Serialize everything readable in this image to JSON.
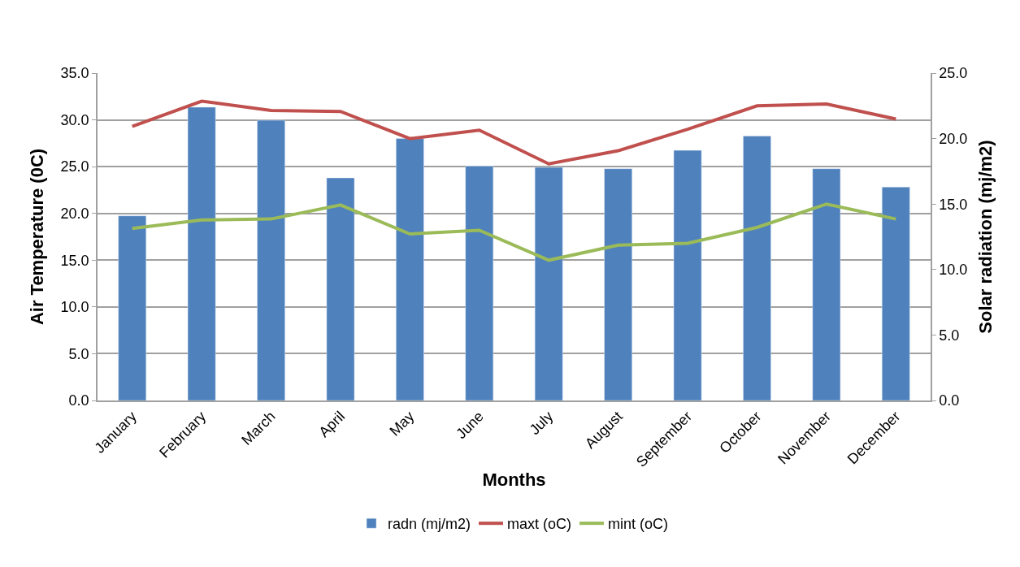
{
  "chart_data": {
    "type": "bar",
    "xlabel": "Months",
    "ylabel": "Air Temperature (0C)",
    "y2label": "Solar radiation (mj/m2)",
    "categories": [
      "January",
      "February",
      "March",
      "April",
      "May",
      "June",
      "July",
      "August",
      "September",
      "October",
      "November",
      "December"
    ],
    "series": [
      {
        "name": "radn (mj/m2)",
        "axis": "y2",
        "color": "#4f81bd",
        "values": [
          14.1,
          22.4,
          21.4,
          17.0,
          20.0,
          17.9,
          17.8,
          17.7,
          19.1,
          20.2,
          17.7,
          16.3
        ]
      },
      {
        "name": "maxt (oC)",
        "type": "line",
        "color": "#c0504d",
        "values": [
          29.3,
          32.0,
          31.0,
          30.9,
          28.0,
          28.9,
          25.3,
          26.7,
          29.0,
          31.5,
          31.7,
          30.1
        ]
      },
      {
        "name": "mint (oC)",
        "type": "line",
        "color": "#9bbb59",
        "values": [
          18.4,
          19.3,
          19.4,
          20.9,
          17.8,
          18.2,
          15.0,
          16.6,
          16.8,
          18.5,
          21.0,
          19.4
        ]
      }
    ],
    "ylim": [
      0,
      35
    ],
    "yticks": [
      {
        "value": 0,
        "label": "0.0"
      },
      {
        "value": 5,
        "label": "5.0"
      },
      {
        "value": 10,
        "label": "10.0"
      },
      {
        "value": 15,
        "label": "15.0"
      },
      {
        "value": 20,
        "label": "20.0"
      },
      {
        "value": 25,
        "label": "25.0"
      },
      {
        "value": 30,
        "label": "30.0"
      },
      {
        "value": 35,
        "label": "35.0"
      }
    ],
    "y2lim": [
      0,
      25
    ],
    "y2ticks": [
      {
        "value": 0,
        "label": "0.0"
      },
      {
        "value": 5,
        "label": "5.0"
      },
      {
        "value": 10,
        "label": "10.0"
      },
      {
        "value": 15,
        "label": "15.0"
      },
      {
        "value": 20,
        "label": "20.0"
      },
      {
        "value": 25,
        "label": "25.0"
      }
    ],
    "grid": "y",
    "legend": "bottom",
    "marker": "none",
    "line_style": "solid"
  }
}
